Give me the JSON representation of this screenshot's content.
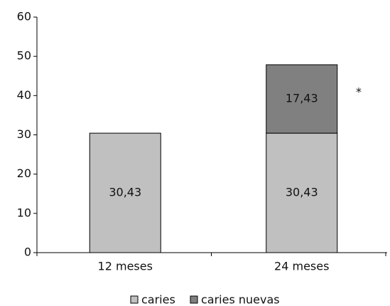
{
  "chart_data": {
    "type": "stacked_bar",
    "categories": [
      "12 meses",
      "24 meses"
    ],
    "series": [
      {
        "name": "caries",
        "color": "#c0c0c0",
        "values": [
          30.43,
          30.43
        ],
        "value_labels": [
          "30,43",
          "30,43"
        ]
      },
      {
        "name": "caries nuevas",
        "color": "#808080",
        "values": [
          null,
          17.43
        ],
        "value_labels": [
          null,
          "17,43"
        ]
      }
    ],
    "annotation": "*",
    "ylim": [
      0,
      60
    ],
    "yticks": [
      0,
      10,
      20,
      30,
      40,
      50,
      60
    ],
    "grid": false
  }
}
